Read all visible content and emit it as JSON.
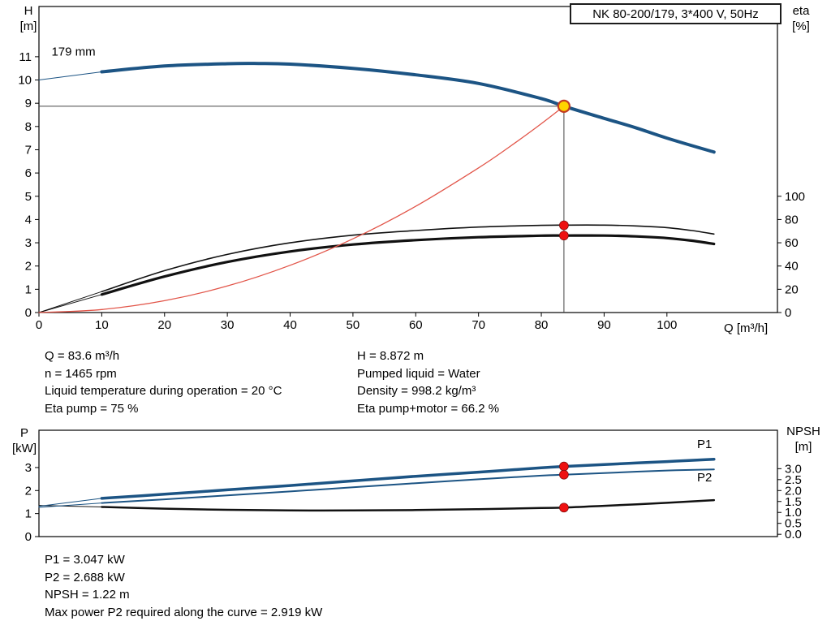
{
  "title_box": {
    "label": "NK 80-200/179, 3*400 V, 50Hz"
  },
  "labels": {
    "h_axis": [
      "H",
      "[m]"
    ],
    "eta_axis": [
      "eta",
      "[%]"
    ],
    "q_axis": "Q [m³/h]",
    "p_axis": [
      "P",
      "[kW]"
    ],
    "npsh_axis": [
      "NPSH",
      "[m]"
    ]
  },
  "colors": {
    "blue": "#1c5484",
    "label_blue": "#2f6fad",
    "system_red": "#e25549",
    "red_dot": "#ee1111",
    "black": "#111111",
    "op_fill": "#ffd400",
    "op_ring": "#c23b22",
    "guide": "#444444"
  },
  "info_top": {
    "left": [
      "Q = 83.6 m³/h",
      "n = 1465 rpm",
      "Liquid temperature during operation = 20 °C",
      "Eta pump = 75 %"
    ],
    "right": [
      "H = 8.872 m",
      "Pumped liquid = Water",
      "Density = 998.2 kg/m³",
      "Eta pump+motor = 66.2 %"
    ]
  },
  "info_bottom": [
    "P1 = 3.047 kW",
    "P2 = 2.688 kW",
    "NPSH = 1.22 m",
    "Max power P2 required along the curve = 2.919 kW"
  ],
  "chart_data": [
    {
      "type": "line",
      "name": "hq-eta-chart",
      "title": "NK 80-200/179, 3*400 V, 50Hz",
      "xlabel": "Q [m³/h]",
      "ylabel_left": "H [m]",
      "ylabel_right": "eta [%]",
      "xlim": [
        0,
        117.6
      ],
      "ylim_left": [
        0,
        13.16
      ],
      "right_to_left": {
        "scale": 0.05,
        "offset": 0
      },
      "grid": false,
      "x_ticks": [
        "0",
        "10",
        "20",
        "30",
        "40",
        "50",
        "60",
        "70",
        "80",
        "90",
        "100"
      ],
      "y_ticks_left": [
        "0",
        "1",
        "2",
        "3",
        "4",
        "5",
        "6",
        "7",
        "8",
        "9",
        "10",
        "11"
      ],
      "y_ticks_right": [
        "0",
        "20",
        "40",
        "60",
        "80",
        "100"
      ],
      "series": [
        {
          "name": "head-leader",
          "axis": "left",
          "color": "blue",
          "width": 1,
          "x": [
            0,
            10
          ],
          "y": [
            10.0,
            10.35
          ]
        },
        {
          "name": "eta-pump-leader",
          "axis": "right",
          "color": "black",
          "width": 1,
          "x": [
            0,
            10
          ],
          "y": [
            0,
            18
          ]
        },
        {
          "name": "eta-pump-motor-leader",
          "axis": "right",
          "color": "black",
          "width": 1,
          "x": [
            0,
            10
          ],
          "y": [
            0,
            15.5
          ]
        },
        {
          "name": "eta-pump",
          "axis": "right",
          "color": "black",
          "width": 1.6,
          "x": [
            10,
            20,
            30,
            40,
            50,
            60,
            70,
            80,
            83.6,
            90,
            95,
            100,
            104,
            107.5
          ],
          "y": [
            18,
            36,
            50,
            60,
            66.5,
            70.5,
            73.5,
            75,
            75.2,
            75.2,
            74.5,
            73,
            70.5,
            67.5
          ]
        },
        {
          "name": "eta-pump-motor",
          "axis": "right",
          "color": "black",
          "width": 3.2,
          "x": [
            10,
            20,
            30,
            40,
            50,
            60,
            70,
            80,
            83.6,
            90,
            95,
            100,
            104,
            107.5
          ],
          "y": [
            15.5,
            31,
            43.5,
            52.5,
            58.5,
            62.3,
            64.8,
            66.1,
            66.2,
            66.2,
            65.5,
            64,
            61.8,
            59
          ]
        },
        {
          "name": "system-curve",
          "axis": "left",
          "color": "system_red",
          "width": 1.3,
          "x": [
            0,
            10,
            20,
            30,
            40,
            50,
            60,
            70,
            75,
            80,
            83.6
          ],
          "y": [
            0,
            0.13,
            0.51,
            1.14,
            2.03,
            3.17,
            4.57,
            6.22,
            7.14,
            8.12,
            8.872
          ]
        },
        {
          "name": "head-curve-179mm",
          "axis": "left",
          "color": "blue",
          "width": 4,
          "x": [
            10,
            20,
            30,
            35,
            40,
            50,
            60,
            70,
            80,
            83.6,
            90,
            95,
            100,
            107.5
          ],
          "y": [
            10.35,
            10.6,
            10.7,
            10.71,
            10.68,
            10.5,
            10.22,
            9.85,
            9.2,
            8.872,
            8.35,
            7.95,
            7.5,
            6.9
          ]
        }
      ],
      "op_cross": {
        "q": 83.6,
        "h": 8.872
      },
      "markers": [
        {
          "axis": "right",
          "x": 83.6,
          "value": 75,
          "style": "dot",
          "name": "eta-pump-point"
        },
        {
          "axis": "right",
          "x": 83.6,
          "value": 66.2,
          "style": "dot",
          "name": "eta-pump-motor-point"
        },
        {
          "axis": "left",
          "x": 83.6,
          "value": 8.872,
          "style": "op",
          "name": "duty-point"
        }
      ],
      "annotations": [
        {
          "text": "179 mm",
          "x": 2,
          "y": 11.05,
          "axis": "left",
          "color": "black",
          "anchor": "start",
          "size": 15
        }
      ]
    },
    {
      "type": "line",
      "name": "power-npsh-chart",
      "title": "",
      "xlabel": "",
      "ylabel_left": "P [kW]",
      "ylabel_right": "NPSH [m]",
      "xlim": [
        0,
        117.6
      ],
      "ylim_left": [
        0,
        4.62
      ],
      "right_to_left": {
        "scale": 0.95,
        "offset": 0.1
      },
      "grid": false,
      "x_ticks": [],
      "y_ticks_left": [
        "0",
        "1",
        "2",
        "3"
      ],
      "y_ticks_right": [
        "0.0",
        "0.5",
        "1.0",
        "1.5",
        "2.0",
        "2.5",
        "3.0"
      ],
      "series": [
        {
          "name": "npsh-leader",
          "axis": "right",
          "color": "black",
          "width": 1,
          "x": [
            0,
            10
          ],
          "y": [
            1.32,
            1.25
          ]
        },
        {
          "name": "p1-leader",
          "axis": "left",
          "color": "blue",
          "width": 1,
          "x": [
            0,
            10
          ],
          "y": [
            1.32,
            1.66
          ]
        },
        {
          "name": "p2-leader",
          "axis": "left",
          "color": "blue",
          "width": 1,
          "x": [
            0,
            10
          ],
          "y": [
            1.27,
            1.46
          ]
        },
        {
          "name": "npsh-curve",
          "axis": "right",
          "color": "black",
          "width": 2.5,
          "x": [
            10,
            20,
            30,
            40,
            50,
            60,
            70,
            80,
            83.6,
            90,
            100,
            107.5
          ],
          "y": [
            1.25,
            1.17,
            1.12,
            1.09,
            1.09,
            1.11,
            1.15,
            1.2,
            1.22,
            1.3,
            1.44,
            1.56
          ]
        },
        {
          "name": "p1-curve",
          "axis": "left",
          "color": "blue",
          "width": 3.5,
          "x": [
            10,
            20,
            30,
            40,
            50,
            60,
            70,
            80,
            83.6,
            90,
            100,
            107.5
          ],
          "y": [
            1.66,
            1.84,
            2.03,
            2.22,
            2.42,
            2.62,
            2.8,
            2.99,
            3.047,
            3.13,
            3.26,
            3.36
          ]
        },
        {
          "name": "p2-curve",
          "axis": "left",
          "color": "blue",
          "width": 2,
          "x": [
            10,
            20,
            30,
            40,
            50,
            60,
            70,
            80,
            83.6,
            90,
            100,
            107.5
          ],
          "y": [
            1.46,
            1.62,
            1.79,
            1.96,
            2.14,
            2.32,
            2.49,
            2.65,
            2.688,
            2.76,
            2.87,
            2.92
          ]
        }
      ],
      "markers": [
        {
          "axis": "left",
          "x": 83.6,
          "value": 3.047,
          "style": "dot",
          "name": "p1-point"
        },
        {
          "axis": "left",
          "x": 83.6,
          "value": 2.688,
          "style": "dot",
          "name": "p2-point"
        },
        {
          "axis": "right",
          "x": 83.6,
          "value": 1.22,
          "style": "dot",
          "name": "npsh-point"
        }
      ],
      "annotations": [
        {
          "text": "P1",
          "x": 106,
          "y": 3.85,
          "axis": "left",
          "color": "label_blue",
          "anchor": "middle",
          "size": 16
        },
        {
          "text": "P2",
          "x": 106,
          "y": 2.4,
          "axis": "left",
          "color": "label_blue",
          "anchor": "middle",
          "size": 16
        }
      ]
    }
  ]
}
